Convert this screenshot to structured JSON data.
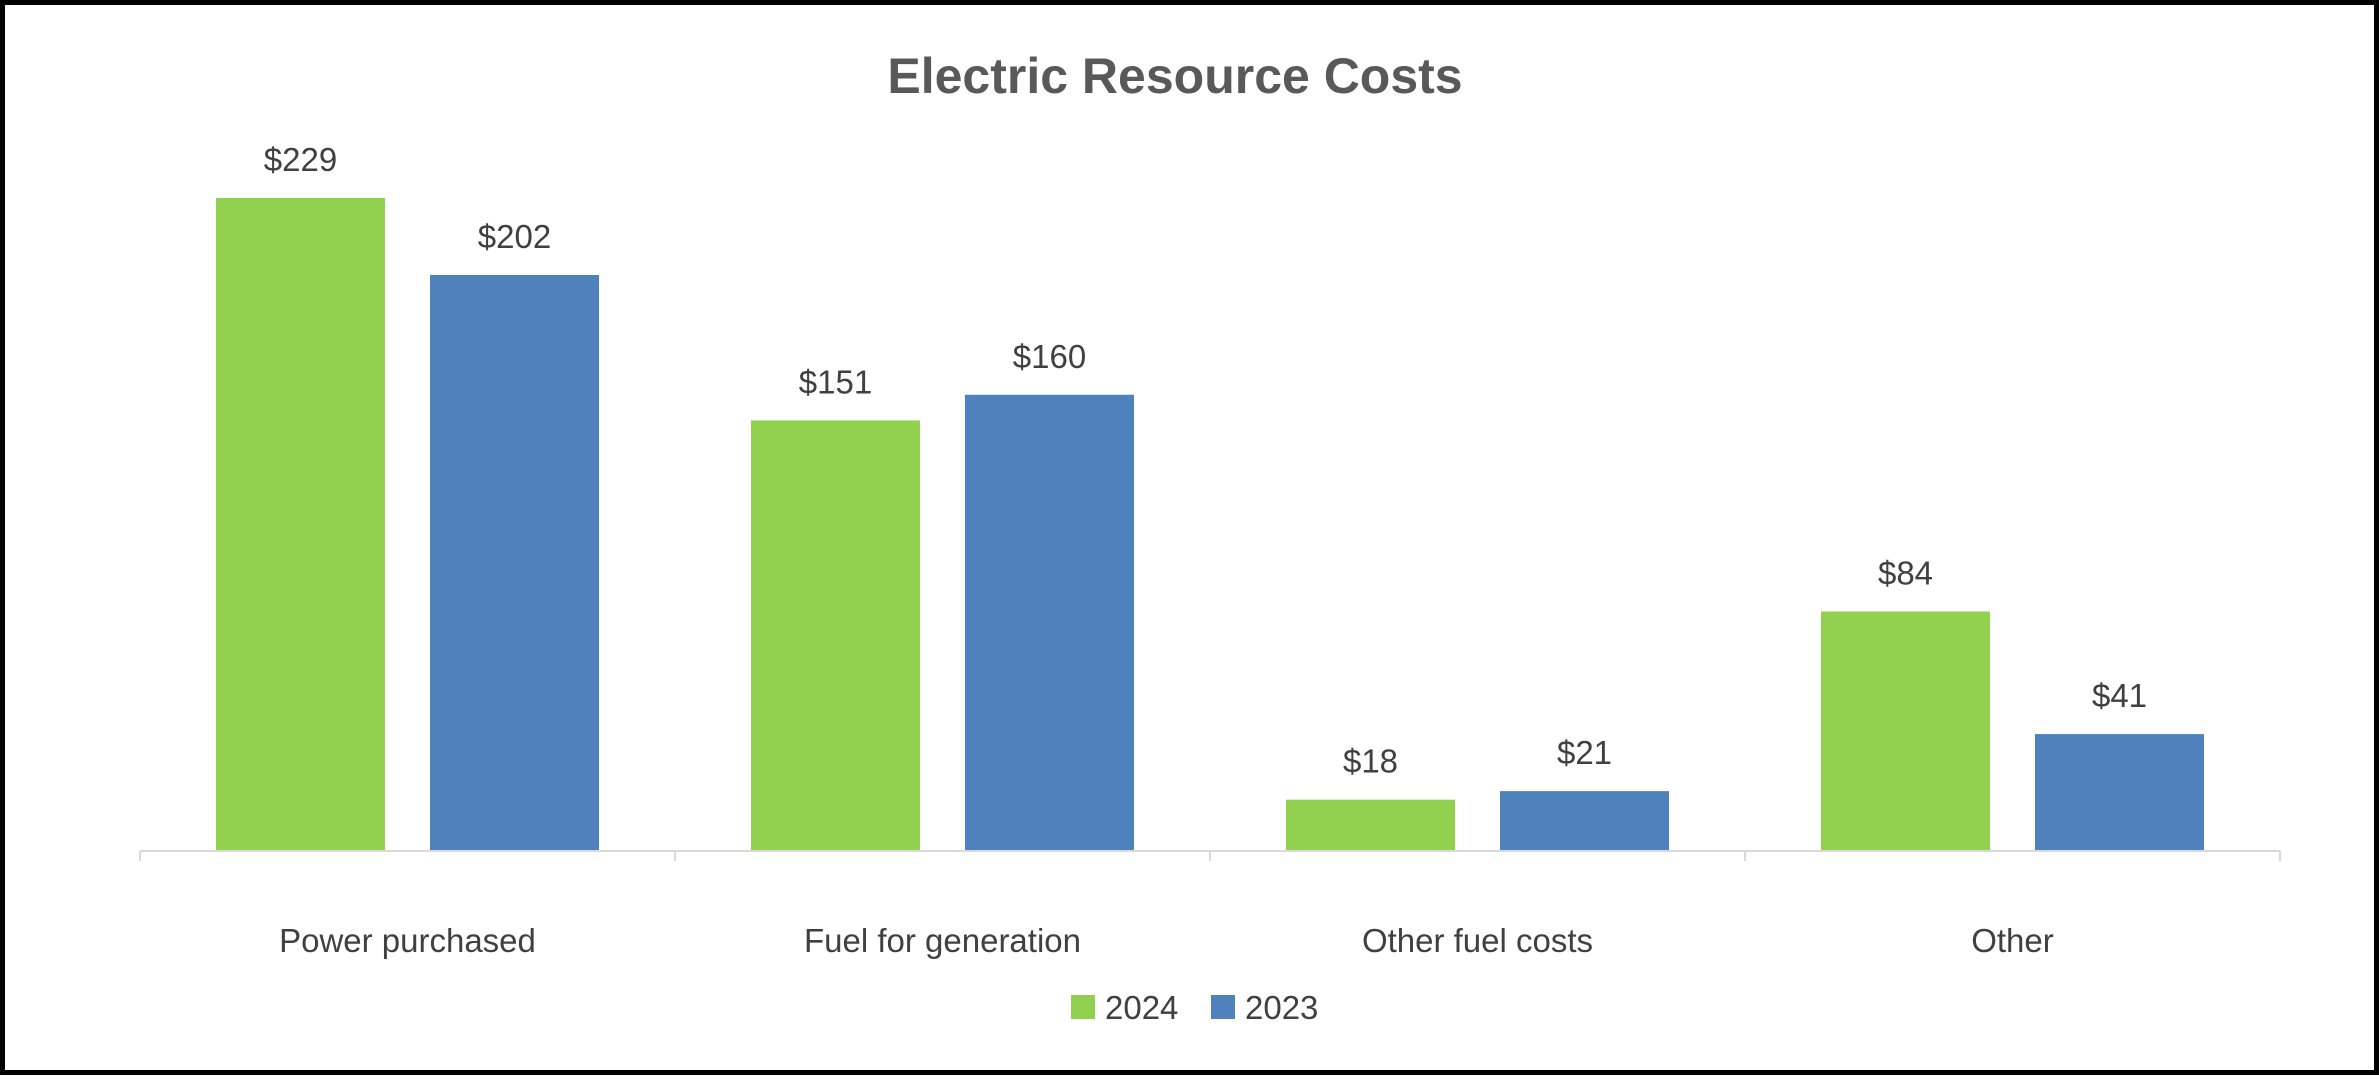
{
  "chart_data": {
    "type": "bar",
    "title": "Electric Resource Costs",
    "categories": [
      "Power purchased",
      "Fuel for generation",
      "Other fuel costs",
      "Other"
    ],
    "series": [
      {
        "name": "2024",
        "color": "#92d050",
        "values": [
          229,
          151,
          18,
          84
        ],
        "labels": [
          "$229",
          "$151",
          "$18",
          "$84"
        ]
      },
      {
        "name": "2023",
        "color": "#4f81bd",
        "values": [
          202,
          160,
          21,
          41
        ],
        "labels": [
          "$202",
          "$160",
          "$21",
          "$41"
        ]
      }
    ],
    "xlabel": "",
    "ylabel": "",
    "ylim": [
      0,
      229
    ],
    "grid": false,
    "legend": "bottom-center"
  }
}
